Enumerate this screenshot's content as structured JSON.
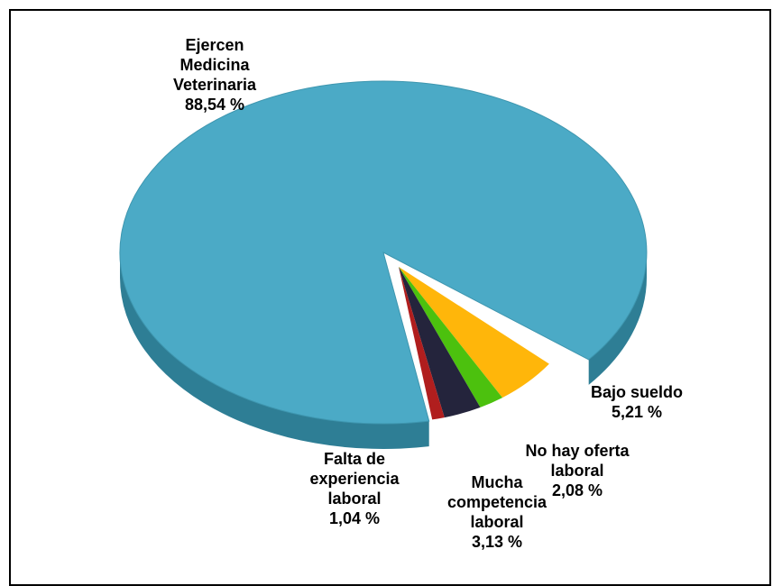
{
  "chart_data": {
    "type": "pie",
    "style": "3d-exploded",
    "title": "",
    "slices": [
      {
        "label_lines": [
          "Ejercen",
          "Medicina",
          "Veterinaria"
        ],
        "value_text": "88,54 %",
        "value": 88.54,
        "color": "#4BAAC6",
        "side_color": "#2E7E95",
        "exploded": false
      },
      {
        "label_lines": [
          "Bajo sueldo"
        ],
        "value_text": "5,21 %",
        "value": 5.21,
        "color": "#FFB60A",
        "side_color": "#D08A00",
        "exploded": true
      },
      {
        "label_lines": [
          "No hay oferta",
          "laboral"
        ],
        "value_text": "2,08 %",
        "value": 2.08,
        "color": "#4CC10E",
        "side_color": "#2E8A06",
        "exploded": true
      },
      {
        "label_lines": [
          "Mucha",
          "competencia",
          "laboral"
        ],
        "value_text": "3,13 %",
        "value": 3.13,
        "color": "#24243C",
        "side_color": "#12121E",
        "exploded": true
      },
      {
        "label_lines": [
          "Falta de",
          "experiencia",
          "laboral"
        ],
        "value_text": "1,04 %",
        "value": 1.04,
        "color": "#B01E1E",
        "side_color": "#7A1010",
        "exploded": true
      }
    ]
  }
}
